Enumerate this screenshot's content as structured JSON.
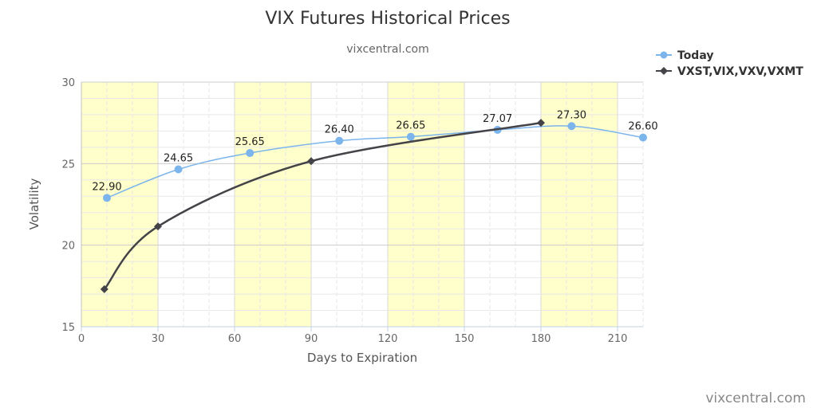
{
  "chart_data": {
    "type": "line",
    "title": "VIX Futures Historical Prices",
    "subtitle": "vixcentral.com",
    "xlabel": "Days to Expiration",
    "ylabel": "Volatility",
    "xlim": [
      0,
      220
    ],
    "ylim": [
      15,
      30
    ],
    "x_ticks": [
      "0",
      "30",
      "60",
      "90",
      "120",
      "150",
      "180",
      "210"
    ],
    "y_ticks": [
      "15",
      "20",
      "25",
      "30"
    ],
    "grid": true,
    "legend_position": "top-right",
    "series": [
      {
        "name": "Today",
        "color": "#7cb5ec",
        "marker": "circle",
        "x": [
          10,
          38,
          66,
          101,
          129,
          163,
          192,
          220
        ],
        "y": [
          22.9,
          24.65,
          25.65,
          26.4,
          26.65,
          27.07,
          27.3,
          26.6
        ],
        "labels": [
          "22.90",
          "24.65",
          "25.65",
          "26.40",
          "26.65",
          "27.07",
          "27.30",
          "26.60"
        ]
      },
      {
        "name": "VXST,VIX,VXV,VXMT",
        "color": "#434348",
        "marker": "diamond",
        "x": [
          9,
          30,
          90,
          180
        ],
        "y": [
          17.3,
          21.15,
          25.15,
          27.5
        ]
      }
    ]
  },
  "credit": "vixcentral.com"
}
